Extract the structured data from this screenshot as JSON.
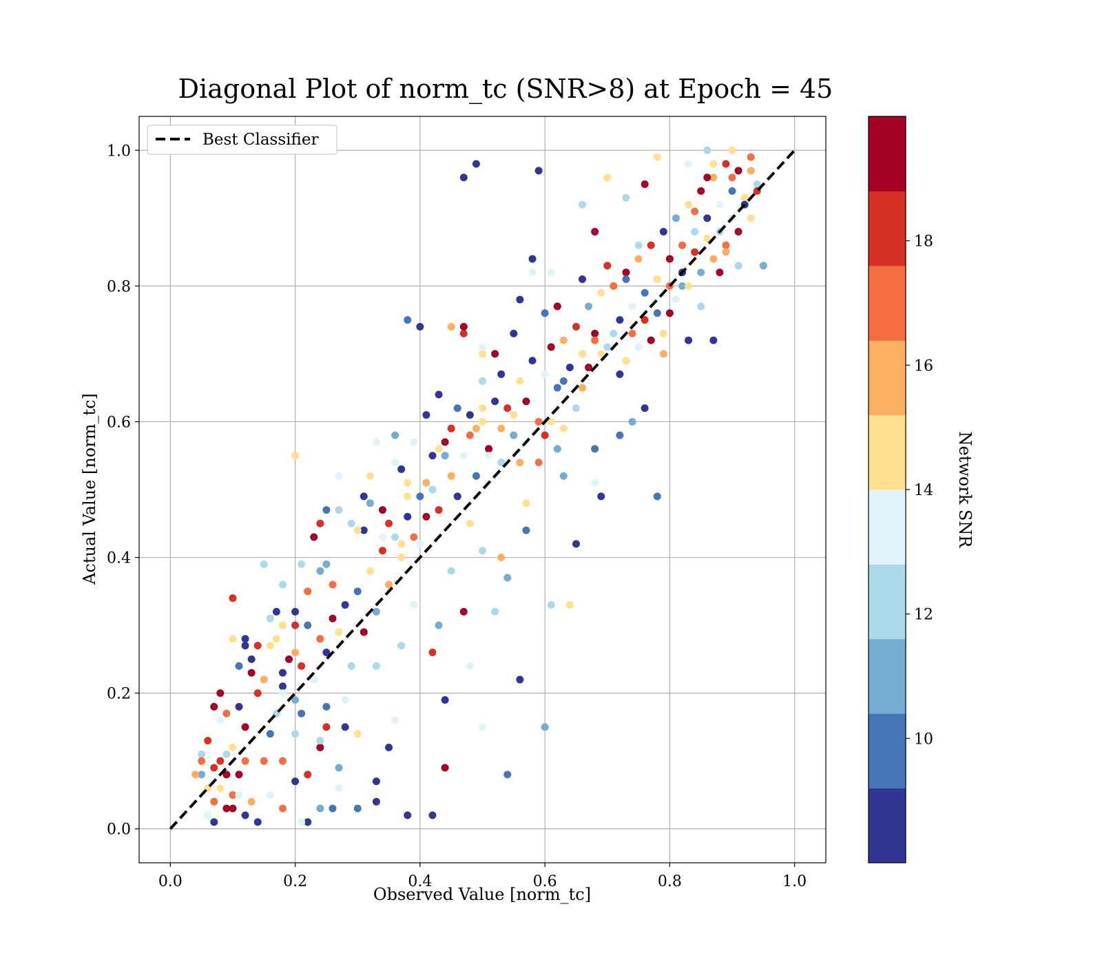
{
  "chart_data": {
    "type": "scatter",
    "title": "Diagonal Plot of norm_tc (SNR>8) at Epoch = 45",
    "xlabel": "Observed Value [norm_tc]",
    "ylabel": "Actual Value [norm_tc]",
    "xlim": [
      -0.05,
      1.05
    ],
    "ylim": [
      -0.05,
      1.05
    ],
    "xticks": [
      0.0,
      0.2,
      0.4,
      0.6,
      0.8,
      1.0
    ],
    "yticks": [
      0.0,
      0.2,
      0.4,
      0.6,
      0.8,
      1.0
    ],
    "xtick_labels": [
      "0.0",
      "0.2",
      "0.4",
      "0.6",
      "0.8",
      "1.0"
    ],
    "ytick_labels": [
      "0.0",
      "0.2",
      "0.4",
      "0.6",
      "0.8",
      "1.0"
    ],
    "grid": true,
    "legend": {
      "position": "upper-left",
      "entries": [
        {
          "label": "Best Classifier",
          "style": "dashed",
          "color": "#000000"
        }
      ]
    },
    "reference_line": {
      "name": "Best Classifier",
      "x": [
        0.0,
        1.0
      ],
      "y": [
        0.0,
        1.0
      ],
      "style": "dashed",
      "color": "#000000"
    },
    "colorbar": {
      "label": "Network SNR",
      "range": [
        8,
        20
      ],
      "ticks": [
        10,
        12,
        14,
        16,
        18
      ],
      "tick_labels": [
        "10",
        "12",
        "14",
        "16",
        "18"
      ],
      "colors": [
        "#313695",
        "#4575b4",
        "#74add1",
        "#abd9e9",
        "#e0f3f8",
        "#fee090",
        "#fdae61",
        "#f46d43",
        "#d73027",
        "#a50026"
      ]
    },
    "points": [
      [
        0.07,
        0.01,
        9
      ],
      [
        0.09,
        0.03,
        19
      ],
      [
        0.1,
        0.05,
        17
      ],
      [
        0.12,
        0.02,
        8
      ],
      [
        0.08,
        0.06,
        15
      ],
      [
        0.06,
        0.02,
        11
      ],
      [
        0.11,
        0.08,
        19
      ],
      [
        0.13,
        0.04,
        16
      ],
      [
        0.09,
        0.11,
        12
      ],
      [
        0.14,
        0.01,
        8
      ],
      [
        0.07,
        0.09,
        18
      ],
      [
        0.1,
        0.12,
        14
      ],
      [
        0.12,
        0.15,
        19
      ],
      [
        0.15,
        0.1,
        17
      ],
      [
        0.08,
        0.16,
        13
      ],
      [
        0.11,
        0.18,
        9
      ],
      [
        0.14,
        0.2,
        18
      ],
      [
        0.16,
        0.14,
        10
      ],
      [
        0.13,
        0.23,
        19
      ],
      [
        0.17,
        0.17,
        12
      ],
      [
        0.15,
        0.22,
        16
      ],
      [
        0.18,
        0.21,
        9
      ],
      [
        0.19,
        0.25,
        19
      ],
      [
        0.16,
        0.27,
        14
      ],
      [
        0.2,
        0.19,
        11
      ],
      [
        0.21,
        0.24,
        18
      ],
      [
        0.22,
        0.3,
        10
      ],
      [
        0.18,
        0.3,
        15
      ],
      [
        0.2,
        0.32,
        8
      ],
      [
        0.24,
        0.28,
        17
      ],
      [
        0.23,
        0.22,
        13
      ],
      [
        0.25,
        0.26,
        9
      ],
      [
        0.26,
        0.31,
        19
      ],
      [
        0.22,
        0.35,
        16
      ],
      [
        0.24,
        0.38,
        11
      ],
      [
        0.27,
        0.29,
        14
      ],
      [
        0.28,
        0.33,
        8
      ],
      [
        0.26,
        0.36,
        17
      ],
      [
        0.29,
        0.24,
        12
      ],
      [
        0.3,
        0.35,
        10
      ],
      [
        0.31,
        0.29,
        19
      ],
      [
        0.32,
        0.38,
        15
      ],
      [
        0.33,
        0.32,
        11
      ],
      [
        0.34,
        0.41,
        18
      ],
      [
        0.31,
        0.44,
        9
      ],
      [
        0.35,
        0.36,
        16
      ],
      [
        0.36,
        0.43,
        12
      ],
      [
        0.34,
        0.47,
        19
      ],
      [
        0.37,
        0.4,
        14
      ],
      [
        0.38,
        0.46,
        8
      ],
      [
        0.39,
        0.43,
        17
      ],
      [
        0.4,
        0.49,
        10
      ],
      [
        0.41,
        0.46,
        19
      ],
      [
        0.38,
        0.51,
        15
      ],
      [
        0.42,
        0.5,
        12
      ],
      [
        0.43,
        0.47,
        18
      ],
      [
        0.44,
        0.55,
        11
      ],
      [
        0.45,
        0.52,
        16
      ],
      [
        0.46,
        0.49,
        9
      ],
      [
        0.44,
        0.57,
        19
      ],
      [
        0.47,
        0.55,
        13
      ],
      [
        0.48,
        0.58,
        17
      ],
      [
        0.49,
        0.52,
        10
      ],
      [
        0.5,
        0.6,
        14
      ],
      [
        0.51,
        0.56,
        19
      ],
      [
        0.52,
        0.63,
        8
      ],
      [
        0.53,
        0.59,
        16
      ],
      [
        0.5,
        0.66,
        12
      ],
      [
        0.54,
        0.62,
        18
      ],
      [
        0.55,
        0.58,
        11
      ],
      [
        0.56,
        0.66,
        15
      ],
      [
        0.57,
        0.63,
        19
      ],
      [
        0.58,
        0.69,
        9
      ],
      [
        0.59,
        0.6,
        17
      ],
      [
        0.6,
        0.67,
        13
      ],
      [
        0.61,
        0.71,
        19
      ],
      [
        0.62,
        0.65,
        10
      ],
      [
        0.63,
        0.72,
        16
      ],
      [
        0.64,
        0.68,
        8
      ],
      [
        0.65,
        0.74,
        18
      ],
      [
        0.66,
        0.7,
        14
      ],
      [
        0.67,
        0.77,
        11
      ],
      [
        0.68,
        0.73,
        19
      ],
      [
        0.69,
        0.79,
        15
      ],
      [
        0.7,
        0.71,
        12
      ],
      [
        0.71,
        0.8,
        17
      ],
      [
        0.72,
        0.75,
        9
      ],
      [
        0.73,
        0.82,
        19
      ],
      [
        0.74,
        0.77,
        13
      ],
      [
        0.75,
        0.84,
        16
      ],
      [
        0.76,
        0.79,
        10
      ],
      [
        0.77,
        0.86,
        18
      ],
      [
        0.78,
        0.81,
        14
      ],
      [
        0.79,
        0.88,
        8
      ],
      [
        0.8,
        0.84,
        19
      ],
      [
        0.81,
        0.9,
        11
      ],
      [
        0.82,
        0.86,
        17
      ],
      [
        0.83,
        0.92,
        15
      ],
      [
        0.84,
        0.88,
        12
      ],
      [
        0.85,
        0.94,
        19
      ],
      [
        0.86,
        0.9,
        9
      ],
      [
        0.87,
        0.96,
        16
      ],
      [
        0.88,
        0.92,
        13
      ],
      [
        0.89,
        0.98,
        18
      ],
      [
        0.9,
        0.94,
        10
      ],
      [
        0.91,
        0.97,
        19
      ],
      [
        0.92,
        0.93,
        14
      ],
      [
        0.93,
        0.99,
        17
      ],
      [
        0.94,
        0.95,
        12
      ],
      [
        0.88,
        0.82,
        19
      ],
      [
        0.08,
        0.2,
        19
      ],
      [
        0.1,
        0.34,
        18
      ],
      [
        0.12,
        0.28,
        9
      ],
      [
        0.15,
        0.39,
        12
      ],
      [
        0.2,
        0.55,
        14
      ],
      [
        0.47,
        0.96,
        9
      ],
      [
        0.49,
        0.98,
        8
      ],
      [
        0.59,
        0.97,
        8
      ],
      [
        0.38,
        0.75,
        10
      ],
      [
        0.4,
        0.74,
        8
      ],
      [
        0.58,
        0.84,
        8
      ],
      [
        0.36,
        0.58,
        11
      ],
      [
        0.42,
        0.26,
        18
      ],
      [
        0.44,
        0.19,
        8
      ],
      [
        0.44,
        0.09,
        19
      ],
      [
        0.42,
        0.02,
        8
      ],
      [
        0.38,
        0.02,
        9
      ],
      [
        0.33,
        0.04,
        8
      ],
      [
        0.3,
        0.03,
        10
      ],
      [
        0.26,
        0.03,
        10
      ],
      [
        0.54,
        0.08,
        10
      ],
      [
        0.56,
        0.22,
        9
      ],
      [
        0.6,
        0.15,
        11
      ],
      [
        0.61,
        0.33,
        12
      ],
      [
        0.64,
        0.33,
        14
      ],
      [
        0.65,
        0.42,
        9
      ],
      [
        0.69,
        0.49,
        8
      ],
      [
        0.78,
        0.49,
        10
      ],
      [
        0.72,
        0.58,
        10
      ],
      [
        0.76,
        0.62,
        8
      ],
      [
        0.5,
        0.15,
        13
      ],
      [
        0.48,
        0.24,
        13
      ],
      [
        0.47,
        0.32,
        19
      ],
      [
        0.41,
        0.61,
        8
      ],
      [
        0.36,
        0.16,
        13
      ],
      [
        0.35,
        0.12,
        9
      ],
      [
        0.33,
        0.07,
        8
      ],
      [
        0.27,
        0.06,
        13
      ],
      [
        0.22,
        0.01,
        8
      ],
      [
        0.21,
        0.01,
        13
      ],
      [
        0.05,
        0.11,
        12
      ],
      [
        0.05,
        0.08,
        11
      ],
      [
        0.06,
        0.02,
        13
      ],
      [
        0.18,
        0.1,
        17
      ],
      [
        0.24,
        0.12,
        19
      ],
      [
        0.22,
        0.08,
        18
      ],
      [
        0.2,
        0.07,
        9
      ],
      [
        0.16,
        0.05,
        13
      ],
      [
        0.18,
        0.03,
        17
      ],
      [
        0.12,
        0.1,
        17
      ],
      [
        0.7,
        0.96,
        14
      ],
      [
        0.78,
        0.99,
        14
      ],
      [
        0.83,
        0.98,
        13
      ],
      [
        0.86,
        1.0,
        12
      ],
      [
        0.9,
        1.0,
        14
      ],
      [
        0.95,
        0.83,
        11
      ],
      [
        0.91,
        0.83,
        12
      ],
      [
        0.85,
        0.77,
        12
      ],
      [
        0.87,
        0.72,
        9
      ],
      [
        0.83,
        0.72,
        8
      ],
      [
        0.79,
        0.7,
        16
      ],
      [
        0.82,
        0.8,
        11
      ],
      [
        0.8,
        0.76,
        19
      ],
      [
        0.74,
        0.6,
        11
      ],
      [
        0.68,
        0.51,
        13
      ],
      [
        0.68,
        0.56,
        10
      ],
      [
        0.62,
        0.56,
        11
      ],
      [
        0.63,
        0.52,
        11
      ],
      [
        0.57,
        0.44,
        10
      ],
      [
        0.54,
        0.37,
        11
      ],
      [
        0.48,
        0.45,
        14
      ],
      [
        0.5,
        0.41,
        12
      ],
      [
        0.53,
        0.4,
        16
      ],
      [
        0.52,
        0.32,
        12
      ],
      [
        0.45,
        0.38,
        12
      ],
      [
        0.43,
        0.3,
        11
      ],
      [
        0.4,
        0.42,
        13
      ],
      [
        0.39,
        0.33,
        13
      ],
      [
        0.37,
        0.27,
        12
      ],
      [
        0.33,
        0.24,
        12
      ],
      [
        0.3,
        0.14,
        15
      ],
      [
        0.28,
        0.15,
        9
      ],
      [
        0.28,
        0.19,
        13
      ],
      [
        0.25,
        0.18,
        10
      ],
      [
        0.25,
        0.15,
        18
      ],
      [
        0.24,
        0.13,
        12
      ],
      [
        0.27,
        0.09,
        11
      ],
      [
        0.24,
        0.03,
        11
      ],
      [
        0.2,
        0.14,
        12
      ],
      [
        0.21,
        0.17,
        10
      ],
      [
        0.18,
        0.2,
        13
      ],
      [
        0.18,
        0.23,
        9
      ],
      [
        0.16,
        0.31,
        12
      ],
      [
        0.18,
        0.36,
        12
      ],
      [
        0.21,
        0.39,
        12
      ],
      [
        0.25,
        0.47,
        10
      ],
      [
        0.25,
        0.39,
        11
      ],
      [
        0.27,
        0.47,
        12
      ],
      [
        0.31,
        0.49,
        9
      ],
      [
        0.29,
        0.45,
        12
      ],
      [
        0.32,
        0.48,
        11
      ],
      [
        0.34,
        0.43,
        13
      ],
      [
        0.35,
        0.45,
        18
      ],
      [
        0.37,
        0.42,
        15
      ],
      [
        0.38,
        0.49,
        14
      ],
      [
        0.41,
        0.51,
        16
      ],
      [
        0.42,
        0.55,
        9
      ],
      [
        0.43,
        0.56,
        15
      ],
      [
        0.45,
        0.59,
        18
      ],
      [
        0.46,
        0.62,
        10
      ],
      [
        0.48,
        0.61,
        9
      ],
      [
        0.49,
        0.59,
        16
      ],
      [
        0.5,
        0.62,
        14
      ],
      [
        0.51,
        0.55,
        13
      ],
      [
        0.53,
        0.54,
        12
      ],
      [
        0.53,
        0.67,
        9
      ],
      [
        0.55,
        0.61,
        15
      ],
      [
        0.56,
        0.54,
        16
      ],
      [
        0.57,
        0.48,
        14
      ],
      [
        0.59,
        0.54,
        17
      ],
      [
        0.6,
        0.58,
        18
      ],
      [
        0.61,
        0.6,
        15
      ],
      [
        0.63,
        0.59,
        15
      ],
      [
        0.63,
        0.66,
        10
      ],
      [
        0.65,
        0.62,
        12
      ],
      [
        0.66,
        0.65,
        16
      ],
      [
        0.67,
        0.68,
        19
      ],
      [
        0.68,
        0.72,
        17
      ],
      [
        0.69,
        0.7,
        14
      ],
      [
        0.71,
        0.73,
        12
      ],
      [
        0.72,
        0.67,
        9
      ],
      [
        0.73,
        0.69,
        15
      ],
      [
        0.74,
        0.73,
        17
      ],
      [
        0.75,
        0.71,
        13
      ],
      [
        0.76,
        0.75,
        18
      ],
      [
        0.77,
        0.72,
        19
      ],
      [
        0.78,
        0.76,
        10
      ],
      [
        0.79,
        0.73,
        14
      ],
      [
        0.8,
        0.8,
        17
      ],
      [
        0.81,
        0.78,
        13
      ],
      [
        0.82,
        0.82,
        9
      ],
      [
        0.83,
        0.8,
        15
      ],
      [
        0.84,
        0.85,
        18
      ],
      [
        0.85,
        0.82,
        11
      ],
      [
        0.86,
        0.87,
        14
      ],
      [
        0.87,
        0.84,
        16
      ],
      [
        0.88,
        0.88,
        12
      ],
      [
        0.89,
        0.86,
        17
      ],
      [
        0.9,
        0.9,
        13
      ],
      [
        0.91,
        0.88,
        19
      ],
      [
        0.92,
        0.92,
        9
      ],
      [
        0.93,
        0.9,
        15
      ],
      [
        0.94,
        0.94,
        18
      ],
      [
        0.9,
        0.96,
        17
      ],
      [
        0.86,
        0.96,
        19
      ],
      [
        0.87,
        0.98,
        14
      ],
      [
        0.93,
        0.97,
        16
      ],
      [
        0.89,
        0.85,
        16
      ],
      [
        0.84,
        0.91,
        17
      ],
      [
        0.76,
        0.95,
        19
      ],
      [
        0.73,
        0.93,
        12
      ],
      [
        0.68,
        0.88,
        19
      ],
      [
        0.66,
        0.81,
        9
      ],
      [
        0.7,
        0.83,
        18
      ],
      [
        0.73,
        0.81,
        10
      ],
      [
        0.75,
        0.86,
        12
      ],
      [
        0.66,
        0.92,
        12
      ],
      [
        0.62,
        0.77,
        19
      ],
      [
        0.6,
        0.76,
        10
      ],
      [
        0.61,
        0.82,
        13
      ],
      [
        0.58,
        0.82,
        13
      ],
      [
        0.56,
        0.78,
        9
      ],
      [
        0.55,
        0.73,
        9
      ],
      [
        0.52,
        0.7,
        19
      ],
      [
        0.5,
        0.7,
        15
      ],
      [
        0.5,
        0.71,
        13
      ],
      [
        0.47,
        0.73,
        18
      ],
      [
        0.45,
        0.74,
        16
      ],
      [
        0.47,
        0.74,
        19
      ],
      [
        0.43,
        0.64,
        9
      ],
      [
        0.39,
        0.57,
        13
      ],
      [
        0.37,
        0.53,
        9
      ],
      [
        0.36,
        0.54,
        13
      ],
      [
        0.33,
        0.57,
        13
      ],
      [
        0.32,
        0.52,
        14
      ],
      [
        0.3,
        0.44,
        14
      ],
      [
        0.27,
        0.52,
        13
      ],
      [
        0.23,
        0.43,
        19
      ],
      [
        0.24,
        0.45,
        18
      ],
      [
        0.22,
        0.35,
        17
      ],
      [
        0.2,
        0.3,
        18
      ],
      [
        0.2,
        0.26,
        16
      ],
      [
        0.17,
        0.32,
        9
      ],
      [
        0.17,
        0.28,
        14
      ],
      [
        0.14,
        0.27,
        18
      ],
      [
        0.13,
        0.25,
        9
      ],
      [
        0.12,
        0.27,
        9
      ],
      [
        0.1,
        0.28,
        15
      ],
      [
        0.11,
        0.24,
        10
      ],
      [
        0.09,
        0.17,
        17
      ],
      [
        0.07,
        0.18,
        19
      ],
      [
        0.06,
        0.13,
        18
      ],
      [
        0.05,
        0.1,
        17
      ],
      [
        0.04,
        0.08,
        16
      ],
      [
        0.07,
        0.04,
        17
      ],
      [
        0.06,
        0.06,
        15
      ],
      [
        0.08,
        0.1,
        18
      ],
      [
        0.09,
        0.08,
        19
      ],
      [
        0.1,
        0.03,
        19
      ],
      [
        0.11,
        0.05,
        13
      ]
    ]
  }
}
